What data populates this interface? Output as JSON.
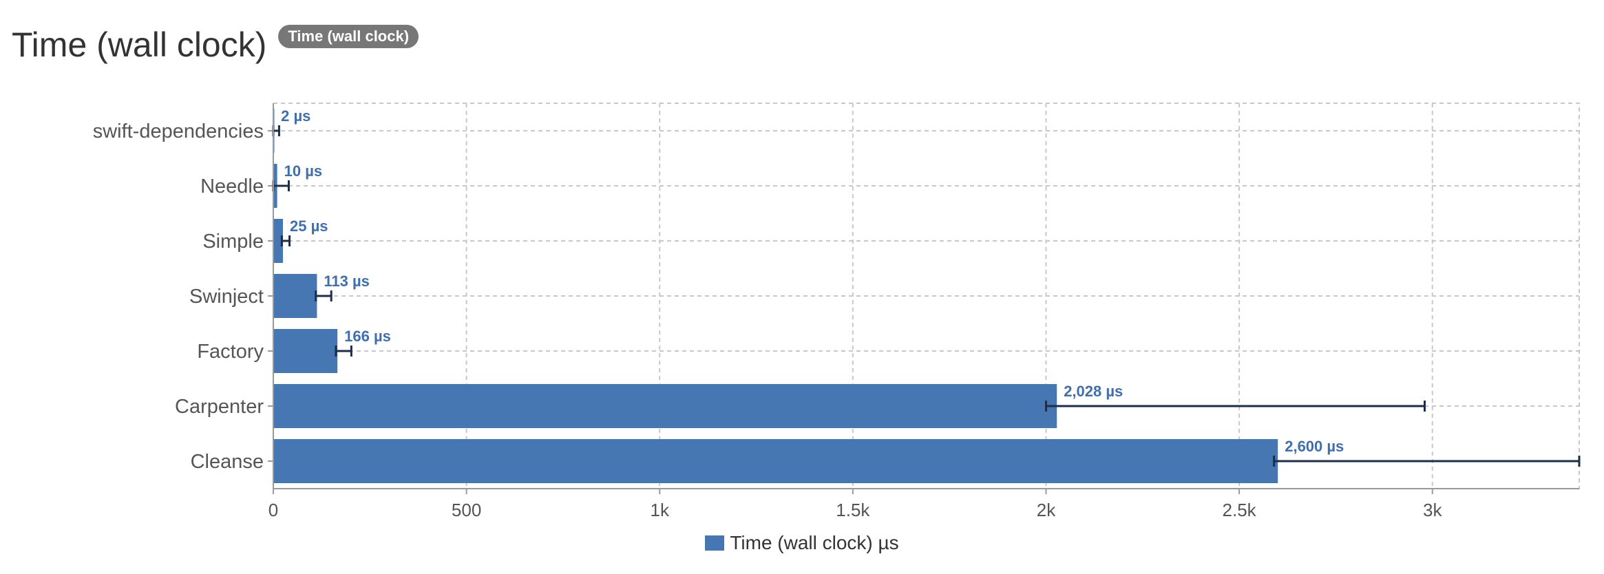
{
  "header": {
    "title": "Time (wall clock)",
    "badge": "Time (wall clock)"
  },
  "colors": {
    "bar": "#4677b2",
    "error_bar": "#1c2e4a",
    "label": "#3f6fae",
    "grid": "#c8c8c8",
    "axis_text": "#555555"
  },
  "chart_data": {
    "type": "bar",
    "orientation": "horizontal",
    "unit": "µs",
    "categories": [
      "swift-dependencies",
      "Needle",
      "Simple",
      "Swinject",
      "Factory",
      "Carpenter",
      "Cleanse"
    ],
    "series": [
      {
        "name": "Time (wall clock) µs",
        "values": [
          2,
          10,
          25,
          113,
          166,
          2028,
          2600
        ],
        "value_labels": [
          "2 µs",
          "10 µs",
          "25 µs",
          "113 µs",
          "166 µs",
          "2,028 µs",
          "2,600 µs"
        ],
        "error_low": [
          0,
          0,
          22,
          110,
          162,
          2000,
          2590
        ],
        "error_high": [
          15,
          40,
          42,
          150,
          202,
          2980,
          3380
        ]
      }
    ],
    "x_ticks": [
      0,
      500,
      1000,
      1500,
      2000,
      2500,
      3000
    ],
    "x_tick_labels": [
      "0",
      "500",
      "1k",
      "1.5k",
      "2k",
      "2.5k",
      "3k"
    ],
    "xlim": [
      0,
      3380
    ],
    "grid": true,
    "legend": "bottom-center"
  }
}
